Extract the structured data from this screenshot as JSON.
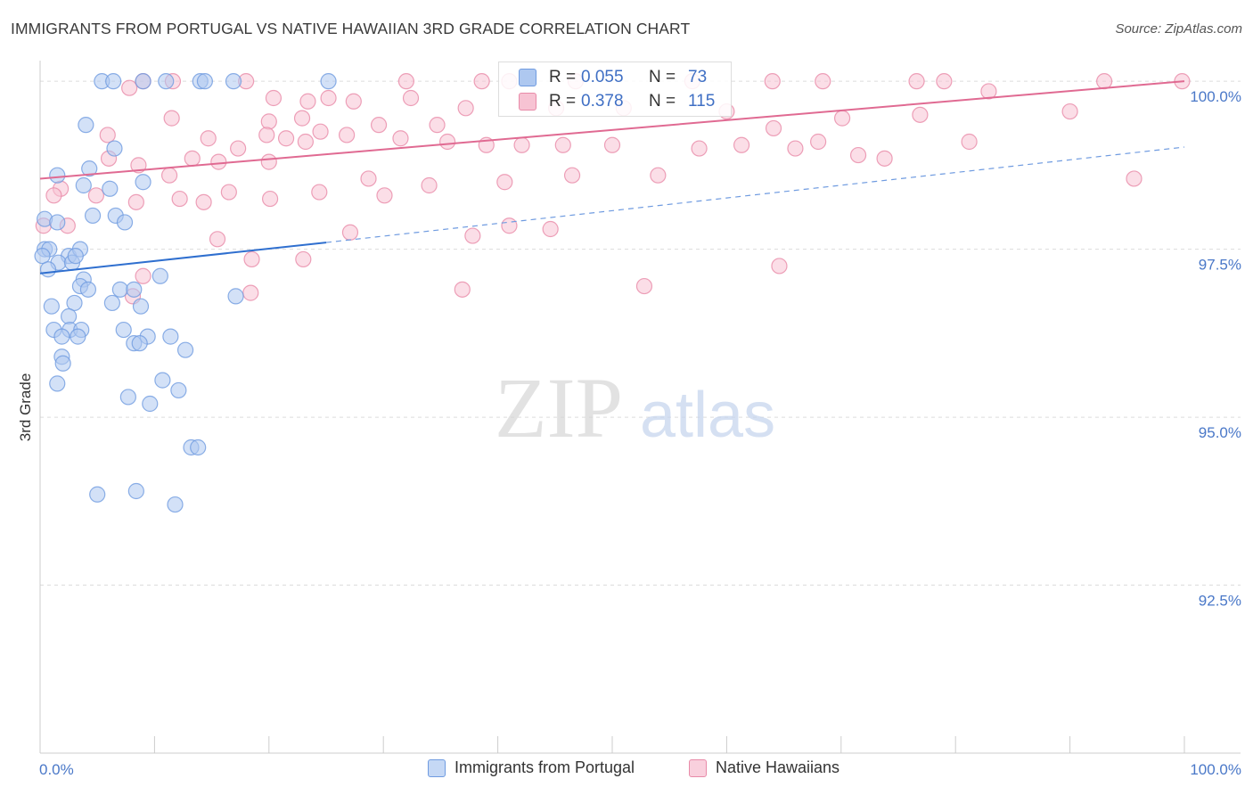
{
  "title": "IMMIGRANTS FROM PORTUGAL VS NATIVE HAWAIIAN 3RD GRADE CORRELATION CHART",
  "source": "Source: ZipAtlas.com",
  "watermark": {
    "zip": "ZIP",
    "atlas": "atlas"
  },
  "stats": [
    {
      "r_label": "R =",
      "r_value": "0.055",
      "n_label": "N =",
      "n_value": "73",
      "color": "#6f9be0",
      "fill": "#aec8f0"
    },
    {
      "r_label": "R =",
      "r_value": "0.378",
      "n_label": "N =",
      "n_value": "115",
      "color": "#e88aa8",
      "fill": "#f7c3d3"
    }
  ],
  "legend": [
    {
      "label": "Immigrants from Portugal",
      "color": "#6f9be0",
      "fill": "#c5d8f5"
    },
    {
      "label": "Native Hawaiians",
      "color": "#e88aa8",
      "fill": "#f9d0dd"
    }
  ],
  "chart_data": {
    "type": "scatter",
    "title": "IMMIGRANTS FROM PORTUGAL VS NATIVE HAWAIIAN 3RD GRADE CORRELATION CHART",
    "xlabel": "",
    "ylabel": "3rd Grade",
    "xlim": [
      0,
      100
    ],
    "ylim": [
      90.0,
      100.4
    ],
    "x_tick_labels": [
      "0.0%",
      "100.0%"
    ],
    "y_ticks": [
      92.5,
      95.0,
      97.5,
      100.0
    ],
    "y_tick_labels": [
      "92.5%",
      "95.0%",
      "97.5%",
      "100.0%"
    ],
    "grid": true,
    "legend_position": "bottom-center",
    "series": [
      {
        "name": "Immigrants from Portugal",
        "color": "#6f9be0",
        "trend": {
          "x0": 0,
          "y0": 97.14,
          "x1": 25,
          "y1": 97.6,
          "dashed_to_x": 100,
          "dashed_to_y": 99.02
        },
        "points": [
          [
            5.4,
            100.0
          ],
          [
            6.4,
            100.0
          ],
          [
            9.0,
            100.0
          ],
          [
            11.0,
            100.0
          ],
          [
            14.0,
            100.0
          ],
          [
            14.4,
            100.0
          ],
          [
            16.9,
            100.0
          ],
          [
            25.2,
            100.0
          ],
          [
            4.0,
            99.35
          ],
          [
            6.5,
            99.0
          ],
          [
            4.3,
            98.7
          ],
          [
            1.5,
            98.6
          ],
          [
            3.8,
            98.45
          ],
          [
            6.1,
            98.4
          ],
          [
            9.0,
            98.5
          ],
          [
            0.4,
            97.95
          ],
          [
            1.5,
            97.9
          ],
          [
            4.6,
            98.0
          ],
          [
            6.6,
            98.0
          ],
          [
            7.4,
            97.9
          ],
          [
            0.4,
            97.5
          ],
          [
            0.8,
            97.5
          ],
          [
            2.5,
            97.4
          ],
          [
            3.5,
            97.5
          ],
          [
            0.2,
            97.4
          ],
          [
            1.6,
            97.3
          ],
          [
            2.8,
            97.3
          ],
          [
            3.1,
            97.4
          ],
          [
            0.7,
            97.2
          ],
          [
            3.8,
            97.05
          ],
          [
            3.5,
            96.95
          ],
          [
            4.2,
            96.9
          ],
          [
            7.0,
            96.9
          ],
          [
            8.2,
            96.9
          ],
          [
            10.5,
            97.1
          ],
          [
            17.1,
            96.8
          ],
          [
            1.0,
            96.65
          ],
          [
            3.0,
            96.7
          ],
          [
            6.3,
            96.7
          ],
          [
            8.8,
            96.65
          ],
          [
            2.5,
            96.5
          ],
          [
            1.2,
            96.3
          ],
          [
            2.6,
            96.3
          ],
          [
            3.6,
            96.3
          ],
          [
            7.3,
            96.3
          ],
          [
            1.9,
            96.2
          ],
          [
            3.3,
            96.2
          ],
          [
            9.4,
            96.2
          ],
          [
            11.4,
            96.2
          ],
          [
            8.2,
            96.1
          ],
          [
            8.7,
            96.1
          ],
          [
            12.7,
            96.0
          ],
          [
            1.9,
            95.9
          ],
          [
            2.0,
            95.8
          ],
          [
            1.5,
            95.5
          ],
          [
            10.7,
            95.55
          ],
          [
            12.1,
            95.4
          ],
          [
            7.7,
            95.3
          ],
          [
            9.6,
            95.2
          ],
          [
            13.2,
            94.55
          ],
          [
            13.8,
            94.55
          ],
          [
            5.0,
            93.85
          ],
          [
            8.4,
            93.9
          ],
          [
            11.8,
            93.7
          ]
        ]
      },
      {
        "name": "Native Hawaiians",
        "color": "#e88aa8",
        "trend": {
          "x0": 0,
          "y0": 98.55,
          "x1": 100,
          "y1": 100.0
        },
        "points": [
          [
            9.0,
            100.0
          ],
          [
            11.6,
            100.0
          ],
          [
            18.0,
            100.0
          ],
          [
            32.0,
            100.0
          ],
          [
            38.6,
            100.0
          ],
          [
            41.0,
            100.0
          ],
          [
            46.8,
            100.0
          ],
          [
            57.0,
            100.0
          ],
          [
            64.0,
            100.0
          ],
          [
            68.4,
            100.0
          ],
          [
            76.6,
            100.0
          ],
          [
            93.0,
            100.0
          ],
          [
            79.0,
            100.0
          ],
          [
            99.8,
            100.0
          ],
          [
            7.8,
            99.9
          ],
          [
            82.9,
            99.85
          ],
          [
            25.2,
            99.75
          ],
          [
            32.4,
            99.75
          ],
          [
            20.4,
            99.75
          ],
          [
            23.4,
            99.7
          ],
          [
            27.4,
            99.7
          ],
          [
            37.2,
            99.6
          ],
          [
            45.1,
            99.6
          ],
          [
            51.0,
            99.6
          ],
          [
            60.0,
            99.55
          ],
          [
            70.1,
            99.45
          ],
          [
            76.9,
            99.5
          ],
          [
            90.0,
            99.55
          ],
          [
            11.5,
            99.45
          ],
          [
            20.0,
            99.4
          ],
          [
            22.9,
            99.45
          ],
          [
            29.6,
            99.35
          ],
          [
            34.7,
            99.35
          ],
          [
            5.9,
            99.2
          ],
          [
            14.7,
            99.15
          ],
          [
            17.3,
            99.0
          ],
          [
            19.8,
            99.2
          ],
          [
            21.5,
            99.15
          ],
          [
            23.2,
            99.1
          ],
          [
            24.5,
            99.25
          ],
          [
            26.8,
            99.2
          ],
          [
            31.5,
            99.15
          ],
          [
            35.6,
            99.1
          ],
          [
            39.0,
            99.05
          ],
          [
            42.1,
            99.05
          ],
          [
            45.7,
            99.05
          ],
          [
            50.0,
            99.05
          ],
          [
            57.6,
            99.0
          ],
          [
            61.3,
            99.05
          ],
          [
            64.1,
            99.3
          ],
          [
            66.0,
            99.0
          ],
          [
            68.0,
            99.1
          ],
          [
            71.5,
            98.9
          ],
          [
            73.8,
            98.85
          ],
          [
            81.2,
            99.1
          ],
          [
            1.8,
            98.4
          ],
          [
            6.0,
            98.85
          ],
          [
            8.6,
            98.75
          ],
          [
            11.3,
            98.6
          ],
          [
            13.3,
            98.85
          ],
          [
            15.6,
            98.8
          ],
          [
            20.0,
            98.8
          ],
          [
            28.7,
            98.55
          ],
          [
            34.0,
            98.45
          ],
          [
            40.6,
            98.5
          ],
          [
            46.5,
            98.6
          ],
          [
            95.6,
            98.55
          ],
          [
            54.0,
            98.6
          ],
          [
            1.2,
            98.3
          ],
          [
            4.9,
            98.3
          ],
          [
            8.4,
            98.2
          ],
          [
            12.2,
            98.25
          ],
          [
            14.3,
            98.2
          ],
          [
            16.5,
            98.35
          ],
          [
            20.1,
            98.25
          ],
          [
            24.4,
            98.35
          ],
          [
            30.1,
            98.3
          ],
          [
            0.3,
            97.85
          ],
          [
            2.4,
            97.85
          ],
          [
            15.5,
            97.65
          ],
          [
            18.5,
            97.35
          ],
          [
            23.0,
            97.35
          ],
          [
            27.1,
            97.75
          ],
          [
            37.8,
            97.7
          ],
          [
            41.0,
            97.85
          ],
          [
            44.6,
            97.8
          ],
          [
            9.0,
            97.1
          ],
          [
            8.1,
            96.8
          ],
          [
            18.4,
            96.85
          ],
          [
            36.9,
            96.9
          ],
          [
            52.8,
            96.95
          ],
          [
            64.6,
            97.25
          ]
        ]
      }
    ]
  }
}
